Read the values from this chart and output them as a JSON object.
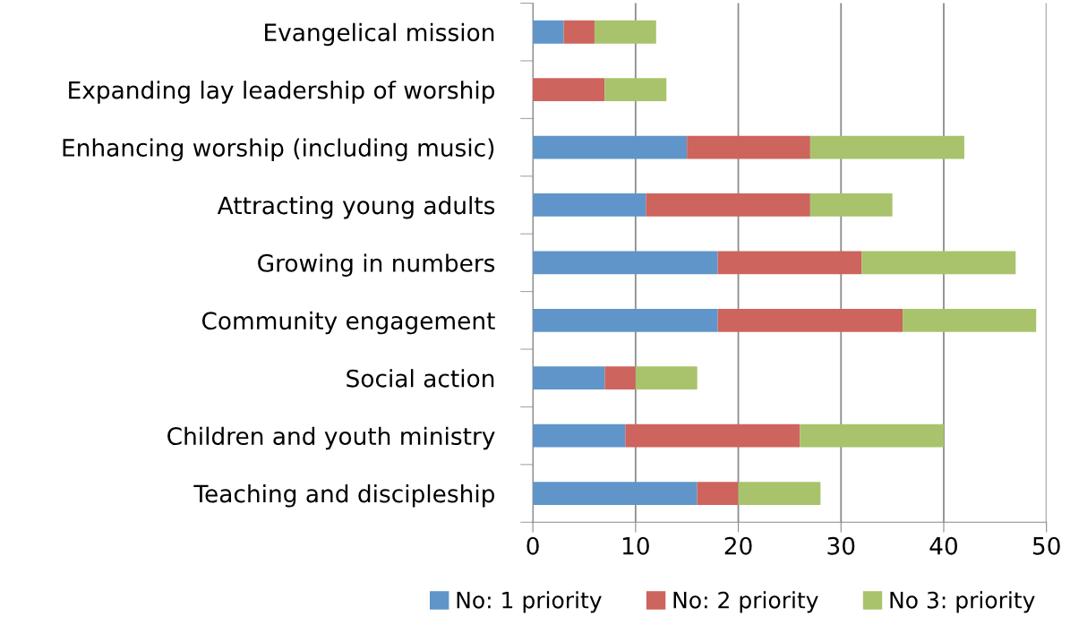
{
  "chart_data": {
    "type": "bar",
    "orientation": "horizontal",
    "stacked": true,
    "categories": [
      "Evangelical mission",
      "Expanding lay leadership of worship",
      "Enhancing worship (including music)",
      "Attracting young adults",
      "Growing in numbers",
      "Community engagement",
      "Social action",
      "Children and youth ministry",
      "Teaching and discipleship"
    ],
    "series": [
      {
        "name": "No: 1 priority",
        "color": "#5f95c9",
        "values": [
          3,
          0,
          15,
          11,
          18,
          18,
          7,
          9,
          16
        ]
      },
      {
        "name": "No: 2 priority",
        "color": "#cd645d",
        "values": [
          3,
          7,
          12,
          16,
          14,
          18,
          3,
          17,
          4
        ]
      },
      {
        "name": "No 3: priority",
        "color": "#a8c36b",
        "values": [
          6,
          6,
          15,
          8,
          15,
          13,
          6,
          14,
          8
        ]
      }
    ],
    "xlim": [
      0,
      50
    ],
    "xticks": [
      0,
      10,
      20,
      30,
      40,
      50
    ],
    "grid": "x",
    "legend": "bottom"
  }
}
